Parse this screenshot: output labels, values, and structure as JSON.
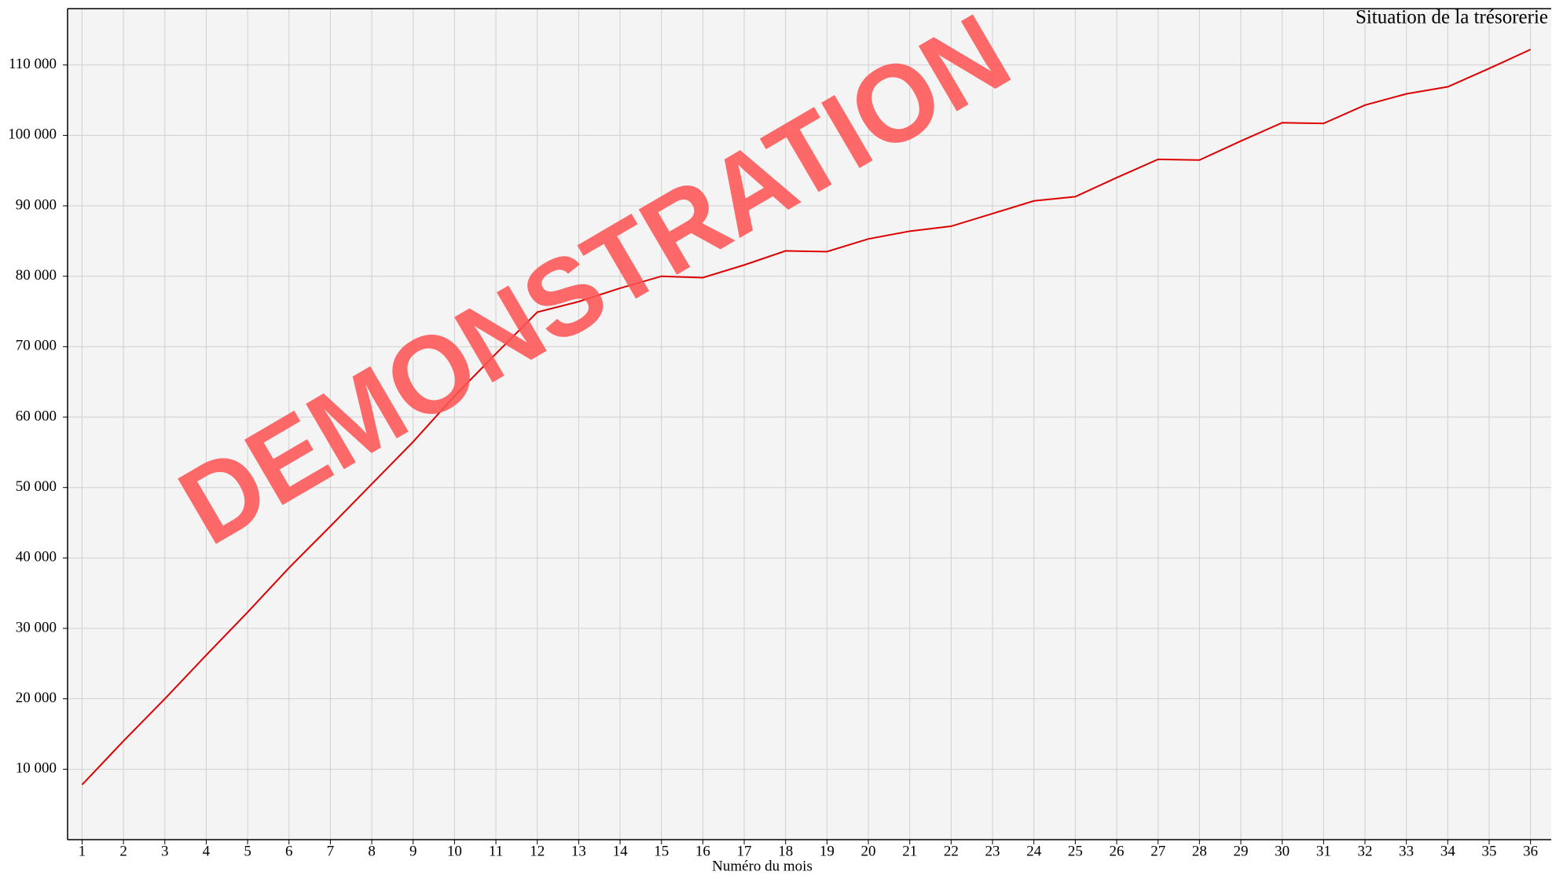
{
  "chart_data": {
    "type": "line",
    "title": "Situation de la trésorerie",
    "x_label": "Numéro du mois",
    "watermark": "DEMONSTRATION",
    "x": [
      1,
      2,
      3,
      4,
      5,
      6,
      7,
      8,
      9,
      10,
      11,
      12,
      13,
      14,
      15,
      16,
      17,
      18,
      19,
      20,
      21,
      22,
      23,
      24,
      25,
      26,
      27,
      28,
      29,
      30,
      31,
      32,
      33,
      34,
      35,
      36
    ],
    "series": [
      {
        "name": "Trésorerie",
        "color": "#dd0000",
        "values": [
          7800,
          14000,
          20000,
          26200,
          32300,
          38600,
          44500,
          50500,
          56500,
          63000,
          69000,
          74900,
          76400,
          78300,
          80000,
          79800,
          81600,
          83600,
          83500,
          85300,
          86400,
          87100,
          88900,
          90700,
          91300,
          94000,
          96600,
          96500,
          99200,
          101800,
          101700,
          104300,
          105900,
          106900,
          109500,
          112200
        ]
      }
    ],
    "xlim": [
      0.65,
      36.5
    ],
    "xticks": [
      1,
      2,
      3,
      4,
      5,
      6,
      7,
      8,
      9,
      10,
      11,
      12,
      13,
      14,
      15,
      16,
      17,
      18,
      19,
      20,
      21,
      22,
      23,
      24,
      25,
      26,
      27,
      28,
      29,
      30,
      31,
      32,
      33,
      34,
      35,
      36
    ],
    "ylim": [
      0,
      118000
    ],
    "yticks": [
      {
        "value": 10000,
        "label": "10 000"
      },
      {
        "value": 20000,
        "label": "20 000"
      },
      {
        "value": 30000,
        "label": "30 000"
      },
      {
        "value": 40000,
        "label": "40 000"
      },
      {
        "value": 50000,
        "label": "50 000"
      },
      {
        "value": 60000,
        "label": "60 000"
      },
      {
        "value": 70000,
        "label": "70 000"
      },
      {
        "value": 80000,
        "label": "80 000"
      },
      {
        "value": 90000,
        "label": "90 000"
      },
      {
        "value": 100000,
        "label": "100 000"
      },
      {
        "value": 110000,
        "label": "110 000"
      }
    ],
    "grid": true,
    "background": "#f4f4f4"
  }
}
